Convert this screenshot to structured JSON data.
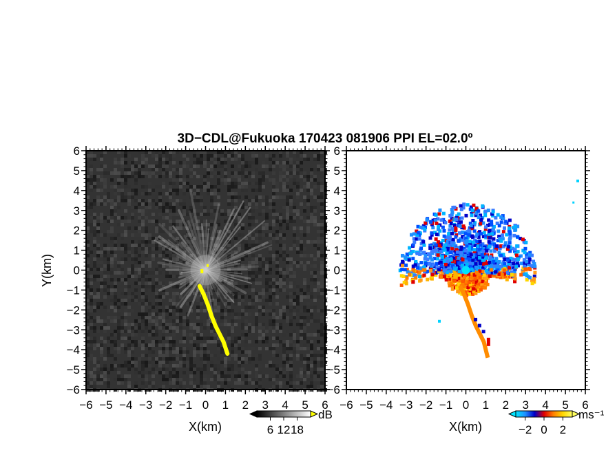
{
  "title": "3D−CDL@Fukuoka 170423 081906 PPI EL=02.0º",
  "chart_data": [
    {
      "type": "heatmap",
      "panel": "left",
      "description_of_field": "radar backscatter intensity, PPI",
      "xlabel": "X(km)",
      "ylabel": "Y(km)",
      "xlim": [
        -6,
        6
      ],
      "ylim": [
        -6,
        6
      ],
      "x_ticks": [
        "−6",
        "−5",
        "−4",
        "−3",
        "−2",
        "−1",
        "0",
        "1",
        "2",
        "3",
        "4",
        "5",
        "6"
      ],
      "y_ticks": [
        "−6",
        "−5",
        "−4",
        "−3",
        "−2",
        "−1",
        "0",
        "1",
        "2",
        "3",
        "4",
        "5",
        "6"
      ],
      "colorbar": {
        "unit": "dB",
        "range": [
          0,
          24
        ],
        "tick_labels": [
          "6",
          "12",
          "18"
        ],
        "tick_values": [
          6,
          12,
          18
        ],
        "colors": [
          "#000000",
          "#ffffff"
        ],
        "over_color": "#ffff00"
      },
      "features": {
        "background_noise_color": "#3a3a3a",
        "radial_spokes_extent_km": 3.6,
        "strong_echo_color": "#ffff00",
        "strong_echo_path_km": [
          [
            -0.3,
            -0.8
          ],
          [
            -0.1,
            -1.2
          ],
          [
            0.1,
            -1.7
          ],
          [
            0.3,
            -2.3
          ],
          [
            0.5,
            -2.8
          ],
          [
            0.7,
            -3.2
          ],
          [
            0.9,
            -3.6
          ],
          [
            1.1,
            -4.2
          ]
        ]
      }
    },
    {
      "type": "heatmap",
      "panel": "right",
      "description_of_field": "Doppler radial velocity, PPI",
      "xlabel": "X(km)",
      "xlim": [
        -6,
        6
      ],
      "ylim": [
        -6,
        6
      ],
      "x_ticks": [
        "−6",
        "−5",
        "−4",
        "−3",
        "−2",
        "−1",
        "0",
        "1",
        "2",
        "3",
        "4",
        "5",
        "6"
      ],
      "y_ticks": [
        "−6",
        "−5",
        "−4",
        "−3",
        "−2",
        "−1",
        "0",
        "1",
        "2",
        "3",
        "4",
        "5",
        "6"
      ],
      "colorbar": {
        "unit": "ms⁻¹",
        "range": [
          -3,
          3
        ],
        "tick_labels": [
          "−2",
          "0",
          "2"
        ],
        "tick_values": [
          -2,
          0,
          2
        ],
        "colors": [
          "#00e5ff",
          "#1e90ff",
          "#0000c8",
          "#e00000",
          "#ff7f00",
          "#ffd700",
          "#ffff60"
        ]
      },
      "features": {
        "north_sector_color": "#1e6fff",
        "south_sector_color": "#ff8c00",
        "echo_path_km": [
          [
            -0.3,
            -0.8
          ],
          [
            -0.1,
            -1.2
          ],
          [
            0.1,
            -1.7
          ],
          [
            0.3,
            -2.3
          ],
          [
            0.5,
            -2.8
          ],
          [
            0.7,
            -3.2
          ],
          [
            0.9,
            -3.6
          ],
          [
            1.1,
            -4.4
          ]
        ]
      }
    }
  ]
}
